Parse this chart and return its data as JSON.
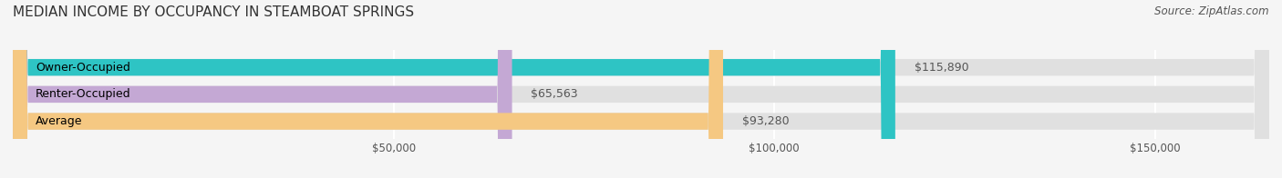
{
  "title": "MEDIAN INCOME BY OCCUPANCY IN STEAMBOAT SPRINGS",
  "source": "Source: ZipAtlas.com",
  "categories": [
    "Owner-Occupied",
    "Renter-Occupied",
    "Average"
  ],
  "values": [
    115890,
    65563,
    93280
  ],
  "bar_colors": [
    "#2ec4c4",
    "#c4a8d4",
    "#f5c882"
  ],
  "bar_bg_color": "#e0e0e0",
  "label_texts": [
    "$115,890",
    "$65,563",
    "$93,280"
  ],
  "xlim": [
    0,
    165000
  ],
  "xticks": [
    50000,
    100000,
    150000
  ],
  "xtick_labels": [
    "$50,000",
    "$100,000",
    "$150,000"
  ],
  "background_color": "#f5f5f5",
  "bar_height": 0.62,
  "title_fontsize": 11,
  "source_fontsize": 8.5,
  "label_fontsize": 9,
  "category_fontsize": 9,
  "grid_color": "#ffffff"
}
